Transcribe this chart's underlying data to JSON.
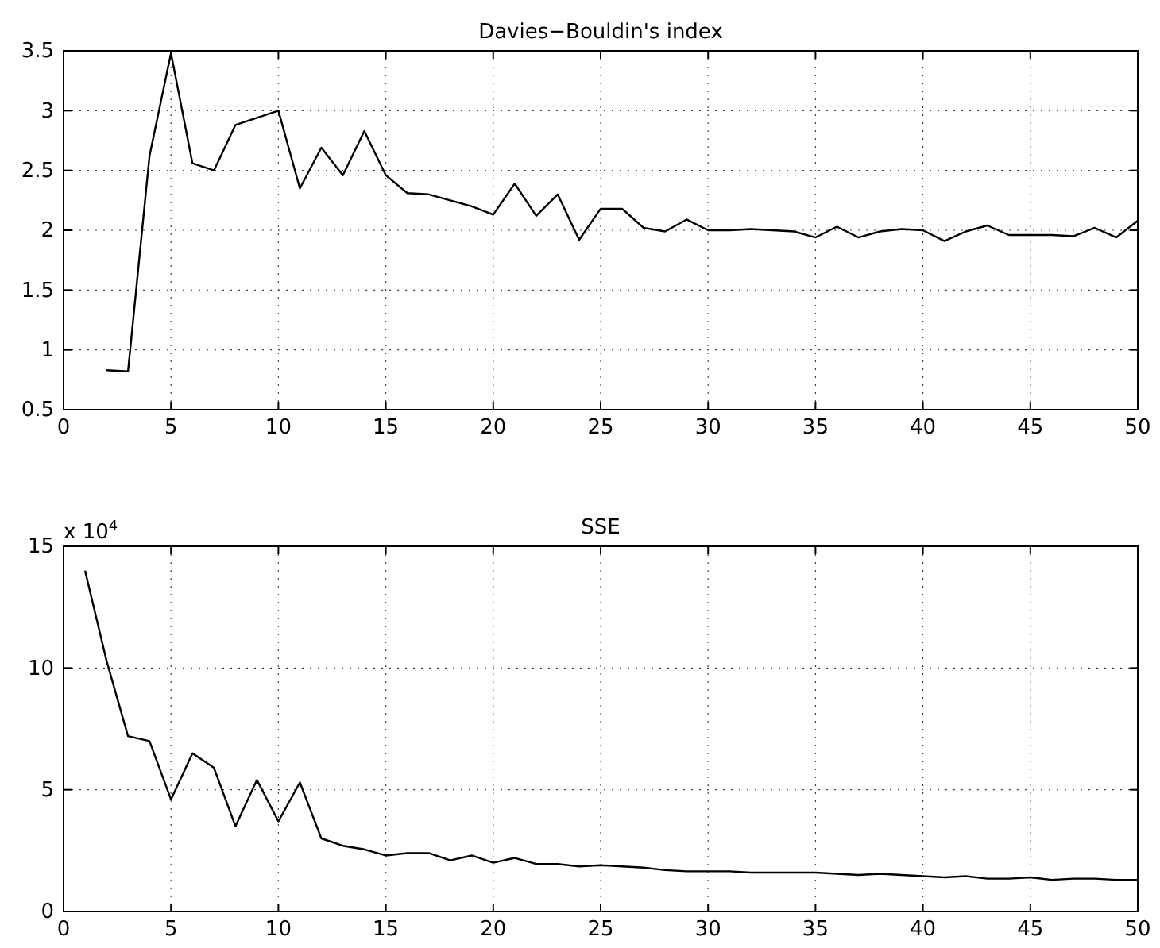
{
  "chart_data": [
    {
      "type": "line",
      "title": "Davies−Bouldin's index",
      "x": [
        2,
        3,
        4,
        5,
        6,
        7,
        8,
        9,
        10,
        11,
        12,
        13,
        14,
        15,
        16,
        17,
        18,
        19,
        20,
        21,
        22,
        23,
        24,
        25,
        26,
        27,
        28,
        29,
        30,
        31,
        32,
        33,
        34,
        35,
        36,
        37,
        38,
        39,
        40,
        41,
        42,
        43,
        44,
        45,
        46,
        47,
        48,
        49,
        50
      ],
      "series": [
        {
          "color": "#000000",
          "values": [
            0.83,
            0.82,
            2.62,
            3.48,
            2.56,
            2.5,
            2.88,
            2.94,
            3.0,
            2.35,
            2.69,
            2.46,
            2.83,
            2.46,
            2.31,
            2.3,
            2.25,
            2.2,
            2.13,
            2.39,
            2.12,
            2.3,
            1.92,
            2.18,
            2.18,
            2.02,
            1.99,
            2.09,
            2.0,
            2.0,
            2.01,
            2.0,
            1.99,
            1.94,
            2.03,
            1.94,
            1.99,
            2.01,
            2.0,
            1.91,
            1.99,
            2.04,
            1.96,
            1.96,
            1.96,
            1.95,
            2.02,
            1.94,
            2.08
          ]
        }
      ],
      "xlim": [
        0,
        50
      ],
      "xticks": [
        0,
        5,
        10,
        15,
        20,
        25,
        30,
        35,
        40,
        45,
        50
      ],
      "ylim": [
        0.5,
        3.5
      ],
      "yticks": [
        0.5,
        1,
        1.5,
        2,
        2.5,
        3,
        3.5
      ],
      "grid": true,
      "marker": "none",
      "line_style": "solid"
    },
    {
      "type": "line",
      "title": "SSE",
      "annotations": [
        "x 10$^{4}$"
      ],
      "x": [
        1,
        2,
        3,
        4,
        5,
        6,
        7,
        8,
        9,
        10,
        11,
        12,
        13,
        14,
        15,
        16,
        17,
        18,
        19,
        20,
        21,
        22,
        23,
        24,
        25,
        26,
        27,
        28,
        29,
        30,
        31,
        32,
        33,
        34,
        35,
        36,
        37,
        38,
        39,
        40,
        41,
        42,
        43,
        44,
        45,
        46,
        47,
        48,
        49,
        50
      ],
      "series": [
        {
          "color": "#000000",
          "values": [
            14.0,
            10.3,
            7.2,
            7.0,
            4.6,
            6.5,
            5.9,
            3.5,
            5.4,
            3.7,
            5.3,
            3.0,
            2.7,
            2.55,
            2.3,
            2.4,
            2.4,
            2.1,
            2.3,
            2.0,
            2.2,
            1.95,
            1.95,
            1.85,
            1.9,
            1.85,
            1.8,
            1.7,
            1.65,
            1.65,
            1.65,
            1.6,
            1.6,
            1.6,
            1.6,
            1.55,
            1.5,
            1.55,
            1.5,
            1.45,
            1.4,
            1.45,
            1.35,
            1.35,
            1.4,
            1.3,
            1.35,
            1.35,
            1.3,
            1.3
          ]
        }
      ],
      "xlim": [
        0,
        50
      ],
      "xticks": [
        0,
        5,
        10,
        15,
        20,
        25,
        30,
        35,
        40,
        45,
        50
      ],
      "ylim": [
        0,
        15
      ],
      "yticks": [
        0,
        5,
        10,
        15
      ],
      "grid": true,
      "marker": "none",
      "line_style": "solid"
    }
  ]
}
